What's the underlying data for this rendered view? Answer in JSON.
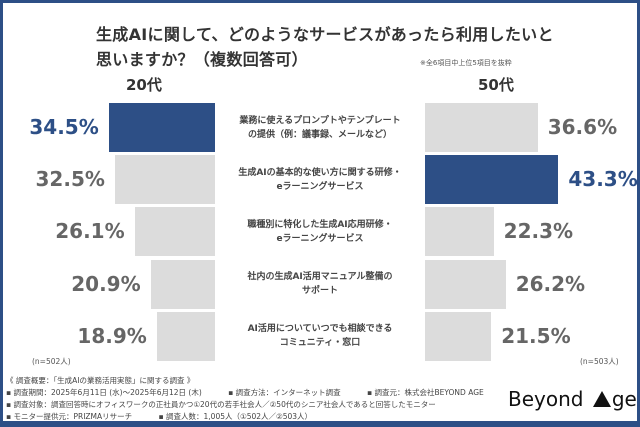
{
  "title_line1": "生成AIに関して、どのようなサービスがあったら利用したいと",
  "title_line2": "思いますか？（複数回答可）",
  "note": "※全6項目中上位5項目を抜粋",
  "colors": {
    "highlight": "#2d4f86",
    "default": "#dcdcdc",
    "highlight_text": "#2d4f86",
    "default_text": "#666666"
  },
  "chart_data": {
    "type": "bar",
    "title": "生成AIに関して、どのようなサービスがあったら利用したいと思いますか？（複数回答可）",
    "categories": [
      [
        "業務に使えるプロンプトやテンプレート",
        "の提供（例：議事録、メールなど）"
      ],
      [
        "生成AIの基本的な使い方に関する研修・",
        "eラーニングサービス"
      ],
      [
        "職種別に特化した生成AI応用研修・",
        "eラーニングサービス"
      ],
      [
        "社内の生成AI活用マニュアル整備の",
        "サポート"
      ],
      [
        "AI活用についていつでも相談できる",
        "コミュニティ・窓口"
      ]
    ],
    "series": [
      {
        "name": "20代",
        "values": [
          34.5,
          32.5,
          26.1,
          20.9,
          18.9
        ],
        "highlight_index": 0,
        "n": "(n=502人)"
      },
      {
        "name": "50代",
        "values": [
          36.6,
          43.3,
          22.3,
          26.2,
          21.5
        ],
        "highlight_index": 1,
        "n": "(n=503人)"
      }
    ],
    "unit": "%"
  },
  "footer": {
    "line1": "《 調査概要：「生成AIの業務活用実態」に関する調査 》",
    "period": "▪ 調査期間：2025年6月11日 (水)～2025年6月12日 (木)",
    "method": "▪ 調査方法：インターネット調査",
    "source": "▪ 調査元：株式会社BEYOND AGE",
    "target": "▪ 調査対象：調査回答時にオフィスワークの正社員かつ①20代の若手社会人／②50代のシニア社会人であると回答したモニター",
    "provider": "▪ モニター提供元：PRIZMAリサーチ",
    "count": "▪ 調査人数：1,005人（①502人／②503人）"
  },
  "logo": {
    "part1": "Beyond ",
    "part2": "ge"
  }
}
